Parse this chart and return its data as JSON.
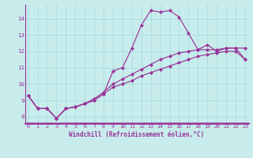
{
  "xlabel": "Windchill (Refroidissement éolien,°C)",
  "bg_color": "#c8ecec",
  "line_color": "#993399",
  "grid_color": "#aadddd",
  "axis_color": "#993399",
  "x": [
    0,
    1,
    2,
    3,
    4,
    5,
    6,
    7,
    8,
    9,
    10,
    11,
    12,
    13,
    14,
    15,
    16,
    17,
    18,
    19,
    20,
    21,
    22,
    23
  ],
  "values1": [
    9.3,
    8.5,
    8.5,
    7.9,
    8.5,
    8.6,
    8.8,
    9.0,
    9.4,
    10.8,
    11.0,
    12.2,
    13.6,
    14.5,
    14.4,
    14.5,
    14.1,
    13.1,
    12.1,
    12.4,
    12.0,
    12.2,
    12.2,
    12.2
  ],
  "values2": [
    9.3,
    8.5,
    8.5,
    7.9,
    8.5,
    8.6,
    8.8,
    9.1,
    9.5,
    10.0,
    10.3,
    10.6,
    10.9,
    11.2,
    11.5,
    11.7,
    11.9,
    12.0,
    12.1,
    12.1,
    12.1,
    12.2,
    12.2,
    11.5
  ],
  "values3": [
    9.3,
    8.5,
    8.5,
    7.9,
    8.5,
    8.6,
    8.8,
    9.0,
    9.4,
    9.8,
    10.0,
    10.2,
    10.5,
    10.7,
    10.9,
    11.1,
    11.3,
    11.5,
    11.7,
    11.8,
    11.9,
    12.0,
    12.0,
    11.5
  ],
  "xlim": [
    -0.3,
    23.3
  ],
  "ylim": [
    7.6,
    14.85
  ],
  "yticks": [
    8,
    9,
    10,
    11,
    12,
    13,
    14
  ],
  "xticks": [
    0,
    1,
    2,
    3,
    4,
    5,
    6,
    7,
    8,
    9,
    10,
    11,
    12,
    13,
    14,
    15,
    16,
    17,
    18,
    19,
    20,
    21,
    22,
    23
  ],
  "marker": "D",
  "markersize": 2.2,
  "linewidth": 0.85,
  "tick_fontsize": 4.8,
  "xlabel_fontsize": 5.5
}
